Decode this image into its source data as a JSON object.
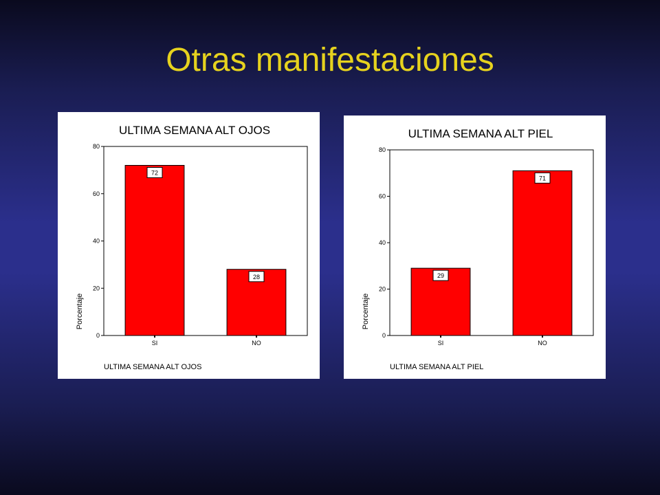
{
  "slide": {
    "title": "Otras manifestaciones"
  },
  "colors": {
    "bar": "#ff0000",
    "title": "#e6d21e"
  },
  "chart_data": [
    {
      "type": "bar",
      "title": "ULTIMA SEMANA ALT OJOS",
      "xlabel": "ULTIMA SEMANA ALT OJOS",
      "ylabel": "Porcentaje",
      "categories": [
        "SI",
        "NO"
      ],
      "values": [
        72,
        28
      ],
      "data_labels": [
        "72",
        "28"
      ],
      "ylim": [
        0,
        80
      ],
      "yticks": [
        0,
        20,
        40,
        60,
        80
      ],
      "ytick_labels": [
        "0",
        "20",
        "40",
        "60",
        "80"
      ],
      "grid": false,
      "legend": "none"
    },
    {
      "type": "bar",
      "title": "ULTIMA SEMANA ALT PIEL",
      "xlabel": "ULTIMA SEMANA ALT PIEL",
      "ylabel": "Porcentaje",
      "categories": [
        "SI",
        "NO"
      ],
      "values": [
        29,
        71
      ],
      "data_labels": [
        "29",
        "71"
      ],
      "ylim": [
        0,
        80
      ],
      "yticks": [
        0,
        20,
        40,
        60,
        80
      ],
      "ytick_labels": [
        "0",
        "20",
        "40",
        "60",
        "80"
      ],
      "grid": false,
      "legend": "none"
    }
  ]
}
